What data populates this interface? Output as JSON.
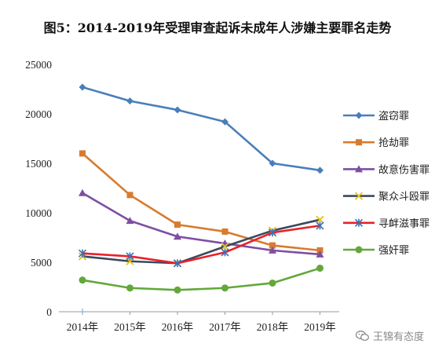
{
  "chart_data": {
    "type": "line",
    "title": "图5：2014-2019年受理审查起诉未成年人涉嫌主要罪名走势",
    "categories": [
      "2014年",
      "2015年",
      "2016年",
      "2017年",
      "2018年",
      "2019年"
    ],
    "ylim": [
      0,
      25000
    ],
    "yticks": [
      0,
      5000,
      10000,
      15000,
      20000,
      25000
    ],
    "grid": false,
    "legend_position": "right",
    "series": [
      {
        "name": "盗窃罪",
        "color": "#4a7ebb",
        "marker": "diamond",
        "values": [
          22700,
          21300,
          20400,
          19200,
          15000,
          14300
        ]
      },
      {
        "name": "抢劫罪",
        "color": "#d87b2e",
        "marker": "square",
        "values": [
          16000,
          11800,
          8800,
          8100,
          6700,
          6200
        ]
      },
      {
        "name": "故意伤害罪",
        "color": "#7d4fa3",
        "marker": "triangle",
        "values": [
          12000,
          9200,
          7600,
          6900,
          6200,
          5800
        ]
      },
      {
        "name": "聚众斗殴罪",
        "color": "#3b4a5c",
        "marker": "x",
        "values": [
          5600,
          5100,
          4900,
          6600,
          8200,
          9300
        ]
      },
      {
        "name": "寻衅滋事罪",
        "color": "#e8212a",
        "marker": "star",
        "values": [
          5900,
          5600,
          4900,
          6000,
          8000,
          8700
        ]
      },
      {
        "name": "强奸罪",
        "color": "#62a83a",
        "marker": "circle",
        "values": [
          3200,
          2400,
          2200,
          2400,
          2900,
          4400
        ]
      }
    ]
  },
  "watermark": {
    "text": "王锦有态度",
    "icon": "wechat-icon"
  }
}
